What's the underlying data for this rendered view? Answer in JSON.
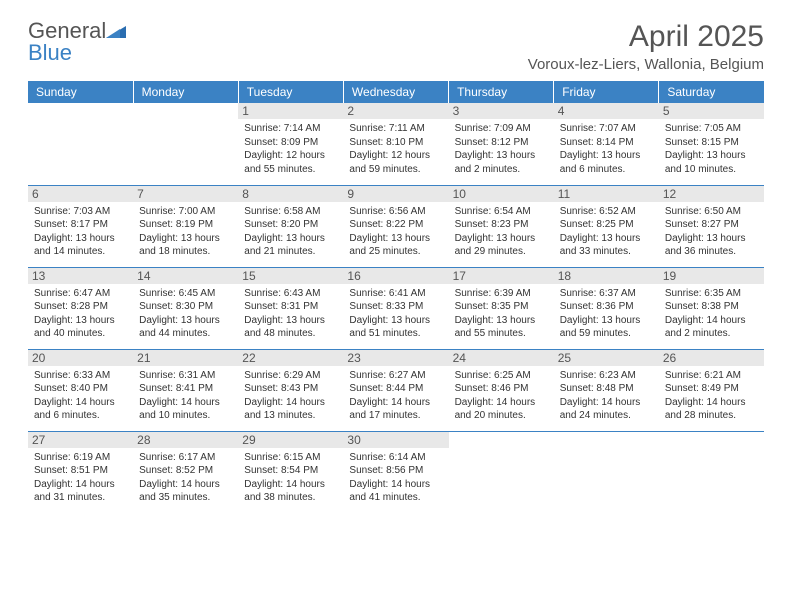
{
  "logo": {
    "text1": "General",
    "text2": "Blue"
  },
  "title": "April 2025",
  "location": "Voroux-lez-Liers, Wallonia, Belgium",
  "header_bg": "#3b82c4",
  "daynum_bg": "#e8e8e8",
  "border_color": "#3b82c4",
  "day_headers": [
    "Sunday",
    "Monday",
    "Tuesday",
    "Wednesday",
    "Thursday",
    "Friday",
    "Saturday"
  ],
  "weeks": [
    [
      null,
      null,
      {
        "n": "1",
        "sunrise": "Sunrise: 7:14 AM",
        "sunset": "Sunset: 8:09 PM",
        "daylight": "Daylight: 12 hours and 55 minutes."
      },
      {
        "n": "2",
        "sunrise": "Sunrise: 7:11 AM",
        "sunset": "Sunset: 8:10 PM",
        "daylight": "Daylight: 12 hours and 59 minutes."
      },
      {
        "n": "3",
        "sunrise": "Sunrise: 7:09 AM",
        "sunset": "Sunset: 8:12 PM",
        "daylight": "Daylight: 13 hours and 2 minutes."
      },
      {
        "n": "4",
        "sunrise": "Sunrise: 7:07 AM",
        "sunset": "Sunset: 8:14 PM",
        "daylight": "Daylight: 13 hours and 6 minutes."
      },
      {
        "n": "5",
        "sunrise": "Sunrise: 7:05 AM",
        "sunset": "Sunset: 8:15 PM",
        "daylight": "Daylight: 13 hours and 10 minutes."
      }
    ],
    [
      {
        "n": "6",
        "sunrise": "Sunrise: 7:03 AM",
        "sunset": "Sunset: 8:17 PM",
        "daylight": "Daylight: 13 hours and 14 minutes."
      },
      {
        "n": "7",
        "sunrise": "Sunrise: 7:00 AM",
        "sunset": "Sunset: 8:19 PM",
        "daylight": "Daylight: 13 hours and 18 minutes."
      },
      {
        "n": "8",
        "sunrise": "Sunrise: 6:58 AM",
        "sunset": "Sunset: 8:20 PM",
        "daylight": "Daylight: 13 hours and 21 minutes."
      },
      {
        "n": "9",
        "sunrise": "Sunrise: 6:56 AM",
        "sunset": "Sunset: 8:22 PM",
        "daylight": "Daylight: 13 hours and 25 minutes."
      },
      {
        "n": "10",
        "sunrise": "Sunrise: 6:54 AM",
        "sunset": "Sunset: 8:23 PM",
        "daylight": "Daylight: 13 hours and 29 minutes."
      },
      {
        "n": "11",
        "sunrise": "Sunrise: 6:52 AM",
        "sunset": "Sunset: 8:25 PM",
        "daylight": "Daylight: 13 hours and 33 minutes."
      },
      {
        "n": "12",
        "sunrise": "Sunrise: 6:50 AM",
        "sunset": "Sunset: 8:27 PM",
        "daylight": "Daylight: 13 hours and 36 minutes."
      }
    ],
    [
      {
        "n": "13",
        "sunrise": "Sunrise: 6:47 AM",
        "sunset": "Sunset: 8:28 PM",
        "daylight": "Daylight: 13 hours and 40 minutes."
      },
      {
        "n": "14",
        "sunrise": "Sunrise: 6:45 AM",
        "sunset": "Sunset: 8:30 PM",
        "daylight": "Daylight: 13 hours and 44 minutes."
      },
      {
        "n": "15",
        "sunrise": "Sunrise: 6:43 AM",
        "sunset": "Sunset: 8:31 PM",
        "daylight": "Daylight: 13 hours and 48 minutes."
      },
      {
        "n": "16",
        "sunrise": "Sunrise: 6:41 AM",
        "sunset": "Sunset: 8:33 PM",
        "daylight": "Daylight: 13 hours and 51 minutes."
      },
      {
        "n": "17",
        "sunrise": "Sunrise: 6:39 AM",
        "sunset": "Sunset: 8:35 PM",
        "daylight": "Daylight: 13 hours and 55 minutes."
      },
      {
        "n": "18",
        "sunrise": "Sunrise: 6:37 AM",
        "sunset": "Sunset: 8:36 PM",
        "daylight": "Daylight: 13 hours and 59 minutes."
      },
      {
        "n": "19",
        "sunrise": "Sunrise: 6:35 AM",
        "sunset": "Sunset: 8:38 PM",
        "daylight": "Daylight: 14 hours and 2 minutes."
      }
    ],
    [
      {
        "n": "20",
        "sunrise": "Sunrise: 6:33 AM",
        "sunset": "Sunset: 8:40 PM",
        "daylight": "Daylight: 14 hours and 6 minutes."
      },
      {
        "n": "21",
        "sunrise": "Sunrise: 6:31 AM",
        "sunset": "Sunset: 8:41 PM",
        "daylight": "Daylight: 14 hours and 10 minutes."
      },
      {
        "n": "22",
        "sunrise": "Sunrise: 6:29 AM",
        "sunset": "Sunset: 8:43 PM",
        "daylight": "Daylight: 14 hours and 13 minutes."
      },
      {
        "n": "23",
        "sunrise": "Sunrise: 6:27 AM",
        "sunset": "Sunset: 8:44 PM",
        "daylight": "Daylight: 14 hours and 17 minutes."
      },
      {
        "n": "24",
        "sunrise": "Sunrise: 6:25 AM",
        "sunset": "Sunset: 8:46 PM",
        "daylight": "Daylight: 14 hours and 20 minutes."
      },
      {
        "n": "25",
        "sunrise": "Sunrise: 6:23 AM",
        "sunset": "Sunset: 8:48 PM",
        "daylight": "Daylight: 14 hours and 24 minutes."
      },
      {
        "n": "26",
        "sunrise": "Sunrise: 6:21 AM",
        "sunset": "Sunset: 8:49 PM",
        "daylight": "Daylight: 14 hours and 28 minutes."
      }
    ],
    [
      {
        "n": "27",
        "sunrise": "Sunrise: 6:19 AM",
        "sunset": "Sunset: 8:51 PM",
        "daylight": "Daylight: 14 hours and 31 minutes."
      },
      {
        "n": "28",
        "sunrise": "Sunrise: 6:17 AM",
        "sunset": "Sunset: 8:52 PM",
        "daylight": "Daylight: 14 hours and 35 minutes."
      },
      {
        "n": "29",
        "sunrise": "Sunrise: 6:15 AM",
        "sunset": "Sunset: 8:54 PM",
        "daylight": "Daylight: 14 hours and 38 minutes."
      },
      {
        "n": "30",
        "sunrise": "Sunrise: 6:14 AM",
        "sunset": "Sunset: 8:56 PM",
        "daylight": "Daylight: 14 hours and 41 minutes."
      },
      null,
      null,
      null
    ]
  ]
}
